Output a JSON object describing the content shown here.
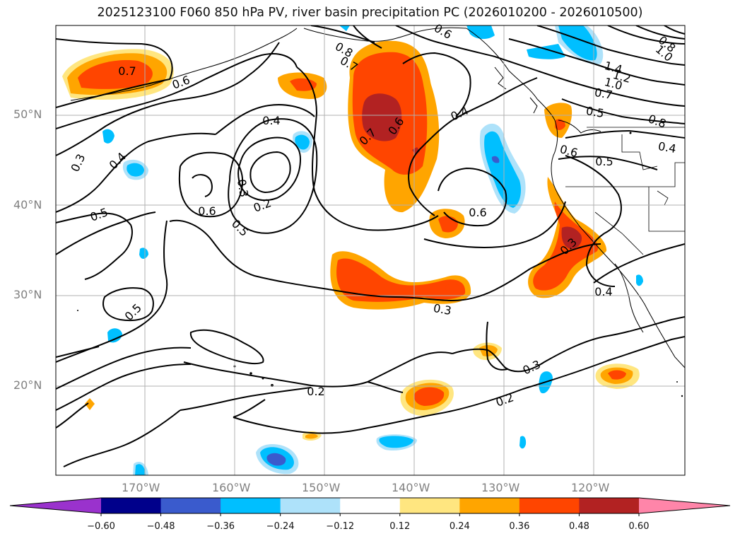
{
  "title": "2025123100 F060 850 hPa PV, river basin precipitation PC (2026010200 - 2026010500)",
  "lat_labels": [
    "50°N",
    "40°N",
    "30°N",
    "20°N"
  ],
  "lon_labels": [
    "170°W",
    "160°W",
    "150°W",
    "140°W",
    "130°W",
    "120°W"
  ],
  "colorbar": {
    "ticks": [
      "−0.60",
      "−0.48",
      "−0.36",
      "−0.24",
      "−0.12",
      "0.12",
      "0.24",
      "0.36",
      "0.48",
      "0.60"
    ],
    "colors": [
      "#9a32cd",
      "#00008b",
      "#3a5bcd",
      "#00bfff",
      "#aee2fa",
      "#ffffff",
      "#ffe680",
      "#ffa500",
      "#ff4500",
      "#b22222",
      "#ff85a9"
    ]
  },
  "contour_labels": [
    "0.7",
    "0.6",
    "0.8",
    "0.7",
    "0.6",
    "1.4",
    "1.2",
    "1.0",
    "0.8",
    "1.0",
    "0.7",
    "0.5",
    "0.8",
    "0.4",
    "0.4",
    "0.6",
    "0.5",
    "0.4",
    "0.7",
    "0.6",
    "0.6",
    "0.3",
    "0.2",
    "0.3",
    "0.4",
    "0.5",
    "0.6",
    "0.5",
    "0.5",
    "0.3",
    "0.4",
    "0.3",
    "0.3",
    "0.2",
    "0.2"
  ]
}
